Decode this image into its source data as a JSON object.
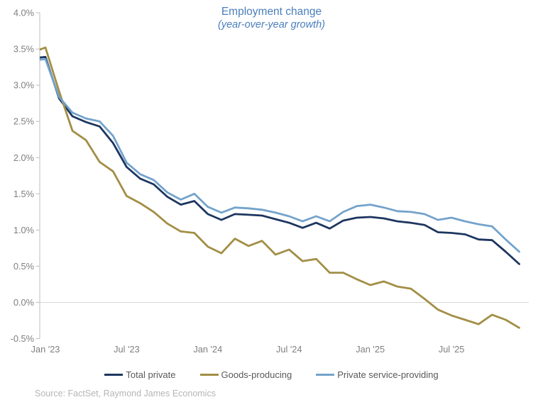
{
  "title": {
    "text": "Employment change",
    "subtitle": "(year-over-year growth)",
    "color": "#4A7EBB"
  },
  "source": "Source: FactSet, Raymond James Economics",
  "chart_data": {
    "type": "line",
    "x": [
      "Jan '23",
      "Feb '23",
      "Mar '23",
      "Apr '23",
      "May '23",
      "Jun '23",
      "Jul '23",
      "Aug '23",
      "Sep '23",
      "Oct '23",
      "Nov '23",
      "Dec '23",
      "Jan '24",
      "Feb '24",
      "Mar '24",
      "Apr '24",
      "May '24",
      "Jun '24",
      "Jul '24",
      "Aug '24",
      "Sep '24",
      "Oct '24",
      "Nov '24",
      "Dec '24",
      "Jan '25",
      "Feb '25",
      "Mar '25",
      "Apr '25",
      "May '25",
      "Jun '25",
      "Jul '25",
      "Aug '25",
      "Sep '25",
      "Oct '25",
      "Nov '25",
      "Dec '25"
    ],
    "x_tick_labels": [
      "Jan '23",
      "Jul '23",
      "Jan '24",
      "Jul '24",
      "Jan '25",
      "Jul '25"
    ],
    "x_tick_indices": [
      0,
      6,
      12,
      18,
      24,
      30
    ],
    "ylabel": "",
    "xlabel": "",
    "ylim": [
      -0.5,
      4.0
    ],
    "y_tick_step": 0.5,
    "y_tick_suffix": "%",
    "gridline_at": 0.0,
    "legend_position": "bottom",
    "series": [
      {
        "name": "Total private",
        "color": "#1D3660",
        "lead_in_value": 3.37,
        "values": [
          3.39,
          2.82,
          2.57,
          2.49,
          2.43,
          2.2,
          1.87,
          1.71,
          1.63,
          1.46,
          1.35,
          1.4,
          1.22,
          1.14,
          1.22,
          1.21,
          1.2,
          1.15,
          1.1,
          1.03,
          1.1,
          1.02,
          1.13,
          1.17,
          1.18,
          1.16,
          1.12,
          1.1,
          1.07,
          0.97,
          0.96,
          0.94,
          0.87,
          0.86,
          0.7,
          0.53
        ]
      },
      {
        "name": "Goods-producing",
        "color": "#A28E45",
        "lead_in_value": 3.45,
        "values": [
          3.52,
          2.92,
          2.37,
          2.24,
          1.94,
          1.81,
          1.47,
          1.37,
          1.25,
          1.09,
          0.98,
          0.96,
          0.77,
          0.68,
          0.88,
          0.78,
          0.85,
          0.66,
          0.73,
          0.57,
          0.6,
          0.41,
          0.41,
          0.32,
          0.24,
          0.29,
          0.22,
          0.19,
          0.05,
          -0.1,
          -0.18,
          -0.24,
          -0.3,
          -0.17,
          -0.24,
          -0.35
        ]
      },
      {
        "name": "Private service-providing",
        "color": "#73A3CB",
        "lead_in_value": 3.34,
        "values": [
          3.36,
          2.84,
          2.62,
          2.54,
          2.5,
          2.3,
          1.93,
          1.77,
          1.69,
          1.52,
          1.42,
          1.5,
          1.32,
          1.24,
          1.31,
          1.3,
          1.28,
          1.24,
          1.19,
          1.12,
          1.19,
          1.12,
          1.25,
          1.33,
          1.35,
          1.31,
          1.26,
          1.25,
          1.22,
          1.14,
          1.17,
          1.12,
          1.08,
          1.05,
          0.87,
          0.7
        ]
      }
    ]
  },
  "colors": {
    "axis_line": "#BFBFBF",
    "gridline": "#D9D9D9",
    "axis_label": "#7F7F7F",
    "legend_text": "#595959",
    "source_text": "#B5B5B5"
  }
}
